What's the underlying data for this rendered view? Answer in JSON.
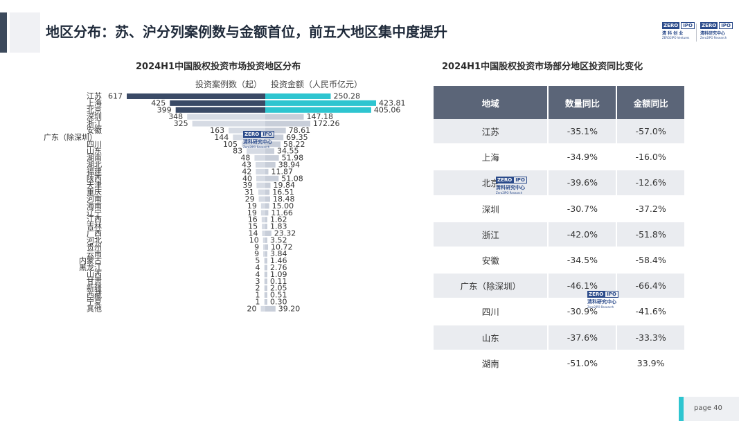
{
  "header": {
    "title": "地区分布：苏、沪分列案例数与金额首位，前五大地区集中度提升"
  },
  "logos": {
    "left": {
      "box1": "ZERO",
      "box2": "IPO",
      "cn": "清 科 创 业",
      "en": "ZERO2IPO Ventures"
    },
    "right": {
      "box1": "ZERO",
      "box2": "IPO",
      "cn": "清科研究中心",
      "en": "Zero2IPO Research"
    }
  },
  "watermark": {
    "box1": "ZERO",
    "box2": "IPO",
    "cn": "清科研究中心",
    "en": "Zero2IPO Research"
  },
  "chart_data": {
    "type": "bar",
    "title": "2024H1中国股权投资市场投资地区分布",
    "legend": [
      "投资案例数（起）",
      "投资金额（人民币亿元）"
    ],
    "categories": [
      "江苏",
      "上海",
      "北京",
      "深圳",
      "浙江",
      "安徽",
      "广东（除深圳）",
      "四川",
      "山东",
      "湖南",
      "湖北",
      "福建",
      "陕西",
      "天津",
      "重庆",
      "河南",
      "海南",
      "辽宁",
      "江西",
      "吉林",
      "广西",
      "河北",
      "贵州",
      "云南",
      "内蒙古",
      "黑龙江",
      "山西",
      "甘肃",
      "新疆",
      "西藏",
      "宁夏",
      "其他"
    ],
    "series": [
      {
        "name": "投资案例数（起）",
        "values": [
          617,
          425,
          399,
          348,
          325,
          163,
          144,
          105,
          83,
          48,
          43,
          42,
          40,
          39,
          31,
          29,
          19,
          19,
          16,
          15,
          14,
          10,
          9,
          9,
          5,
          4,
          4,
          3,
          2,
          1,
          1,
          20
        ]
      },
      {
        "name": "投资金额（人民币亿元）",
        "values": [
          "250.28",
          "423.81",
          "405.06",
          "147.18",
          "172.26",
          "78.61",
          "69.35",
          "58.22",
          "34.55",
          "51.98",
          "38.94",
          "11.87",
          "51.08",
          "19.84",
          "16.51",
          "18.48",
          "15.00",
          "11.66",
          "1.62",
          "1.83",
          "23.32",
          "3.52",
          "10.72",
          "3.84",
          "1.46",
          "2.76",
          "1.09",
          "0.11",
          "2.05",
          "0.51",
          "0.30",
          "39.20"
        ]
      }
    ],
    "colors": {
      "dark": "#3a4a66",
      "teal": "#2ec5d0",
      "light_left": "#d6dbe4",
      "light_right": "#c8ced9"
    }
  },
  "table": {
    "title": "2024H1中国股权投资市场部分地区投资同比变化",
    "headers": [
      "地域",
      "数量同比",
      "金额同比"
    ],
    "rows": [
      {
        "region": "江苏",
        "count": "-35.1%",
        "amount": "-57.0%"
      },
      {
        "region": "上海",
        "count": "-34.9%",
        "amount": "-16.0%"
      },
      {
        "region": "北京",
        "count": "-39.6%",
        "amount": "-12.6%"
      },
      {
        "region": "深圳",
        "count": "-30.7%",
        "amount": "-37.2%"
      },
      {
        "region": "浙江",
        "count": "-42.0%",
        "amount": "-51.8%"
      },
      {
        "region": "安徽",
        "count": "-34.5%",
        "amount": "-58.4%"
      },
      {
        "region": "广东（除深圳）",
        "count": "-46.1%",
        "amount": "-66.4%"
      },
      {
        "region": "四川",
        "count": "-30.9%",
        "amount": "-41.6%"
      },
      {
        "region": "山东",
        "count": "-37.6%",
        "amount": "-33.3%"
      },
      {
        "region": "湖南",
        "count": "-51.0%",
        "amount": "33.9%"
      }
    ]
  },
  "footer": {
    "page_label": "page  40"
  }
}
